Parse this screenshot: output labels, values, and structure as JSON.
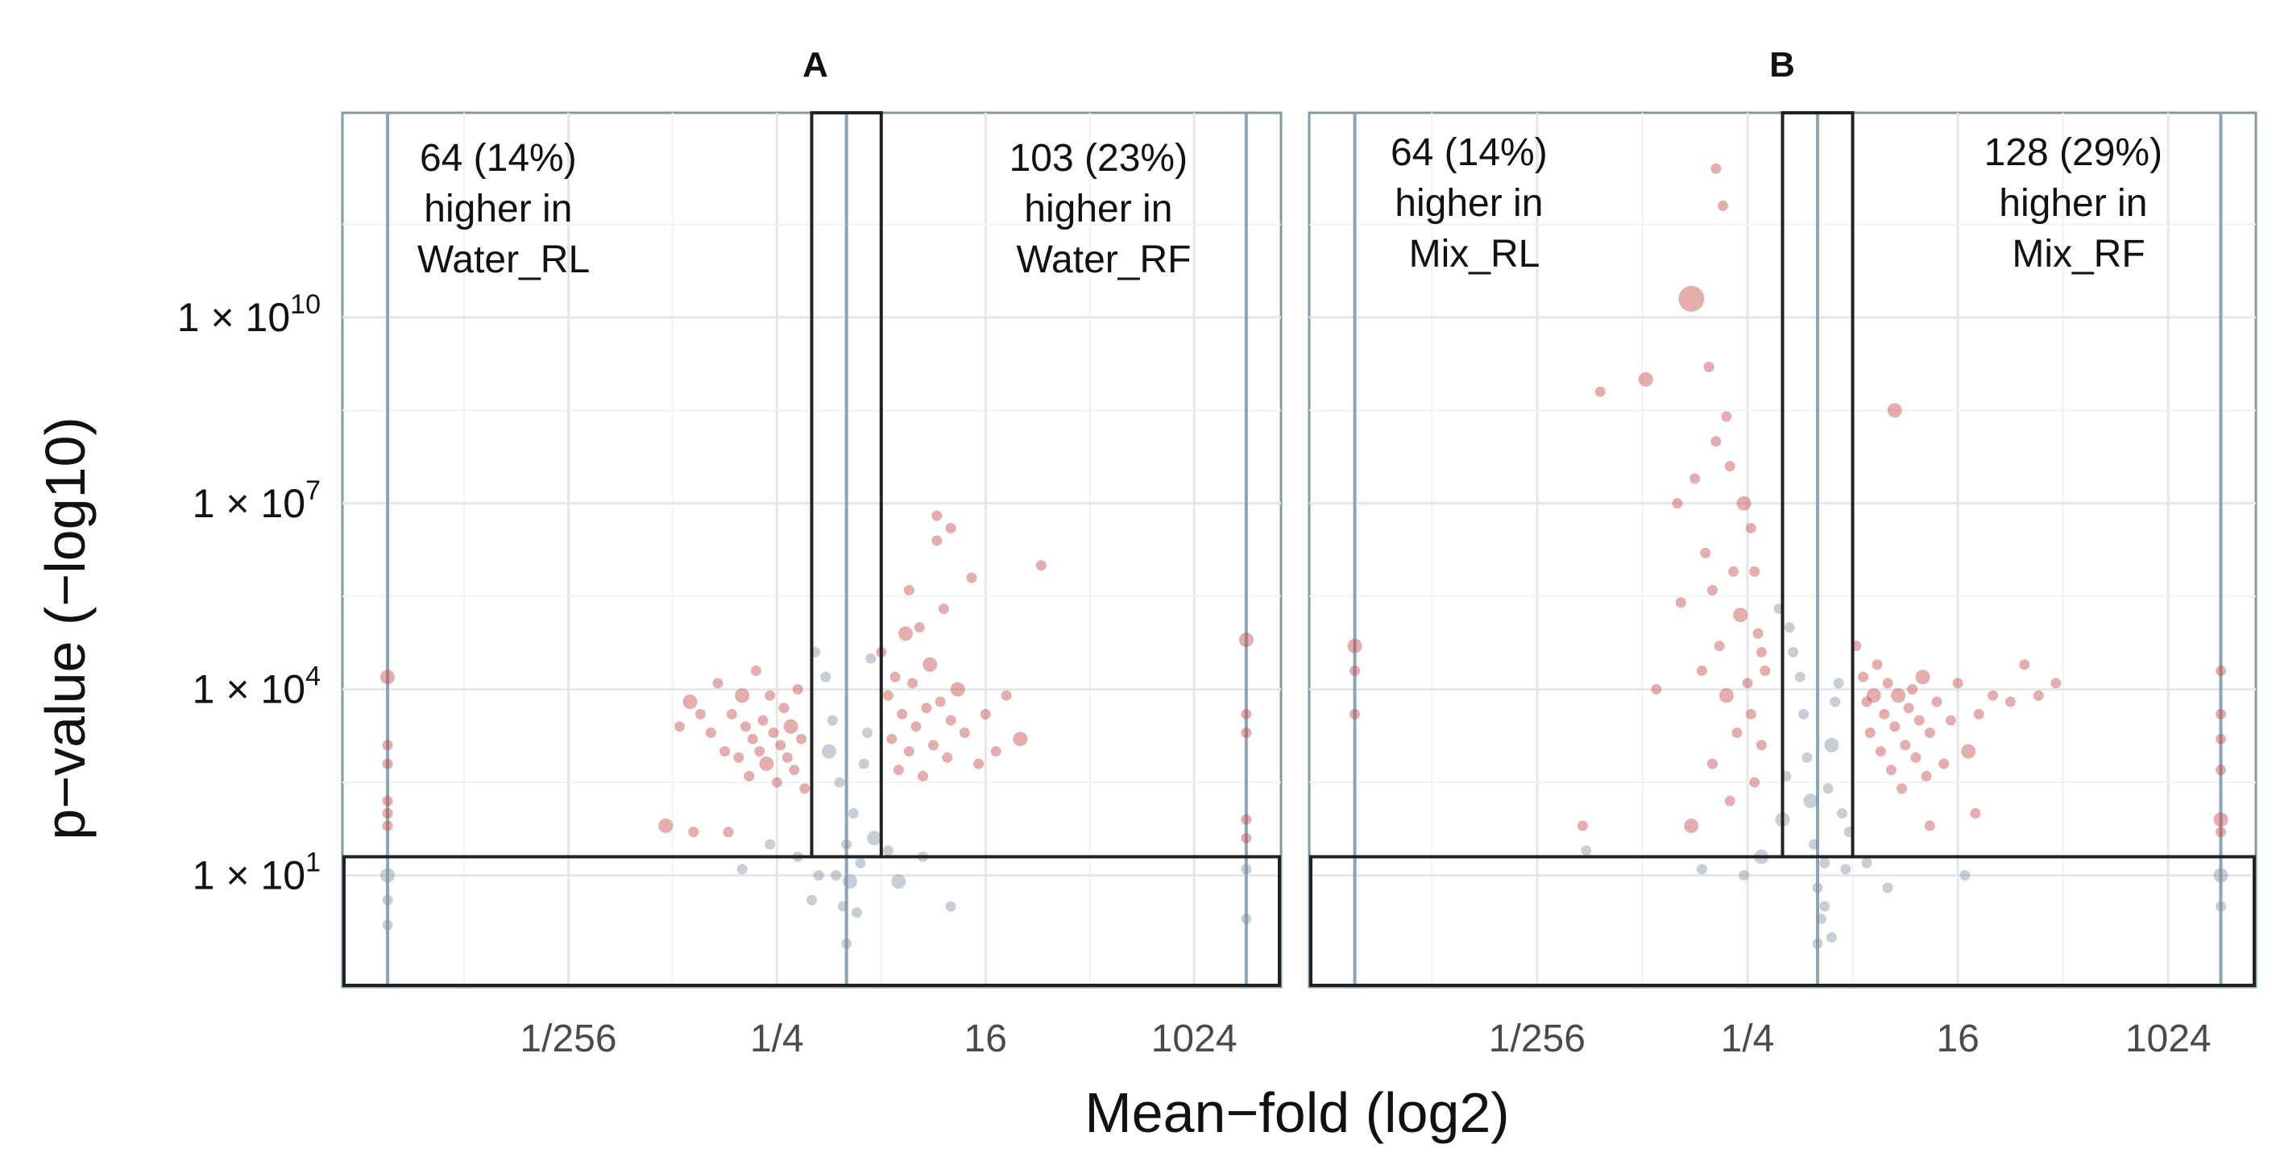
{
  "figure": {
    "xlabel": "Mean−fold (log2)",
    "ylabel": "p−value (−log10)"
  },
  "colors": {
    "significant": "#c84a4a",
    "nonsignificant": "#8193a6",
    "threshold_line": "#8aa4b8",
    "box": "#222222",
    "grid": "#e6e6e6"
  },
  "chart_data": [
    {
      "type": "scatter",
      "title": "A",
      "xlabel": "Mean−fold (log2)",
      "ylabel": "p−value (−log10)",
      "x_scale": "log2",
      "y_scale": "log10",
      "xlim": [
        -14.5,
        12.5
      ],
      "ylim": [
        -0.8,
        13.3
      ],
      "x_ticks": [
        {
          "value": -8,
          "label": "1/256"
        },
        {
          "value": -2,
          "label": "1/4"
        },
        {
          "value": 4,
          "label": "16"
        },
        {
          "value": 10,
          "label": "1024"
        }
      ],
      "y_ticks": [
        {
          "value": 1,
          "base": "1 × 10",
          "exp": "1"
        },
        {
          "value": 4,
          "base": "1 × 10",
          "exp": "4"
        },
        {
          "value": 7,
          "base": "1 × 10",
          "exp": "7"
        },
        {
          "value": 10,
          "base": "1 × 10",
          "exp": "10"
        }
      ],
      "annotations": {
        "left": [
          "64 (14%)",
          "higher in",
          "Water_RL"
        ],
        "right": [
          "103 (23%)",
          "higher in",
          "Water_RF"
        ]
      },
      "thresholds": {
        "x_low": -13.2,
        "x_high": 11.5,
        "fold_low": -1,
        "fold_high": 1,
        "p": 1.3
      },
      "series": [
        {
          "name": "significant",
          "points": [
            [
              -13.2,
              4.2
            ],
            [
              -13.2,
              3.1
            ],
            [
              -13.2,
              2.8
            ],
            [
              -13.2,
              2.2
            ],
            [
              -13.2,
              2.0
            ],
            [
              -13.2,
              1.8
            ],
            [
              -4.8,
              3.4
            ],
            [
              -4.5,
              3.8
            ],
            [
              -4.2,
              3.6
            ],
            [
              -3.9,
              3.3
            ],
            [
              -3.7,
              4.1
            ],
            [
              -3.5,
              3.0
            ],
            [
              -3.3,
              3.6
            ],
            [
              -3.1,
              2.9
            ],
            [
              -3.0,
              3.9
            ],
            [
              -2.9,
              3.4
            ],
            [
              -2.8,
              2.6
            ],
            [
              -2.7,
              3.2
            ],
            [
              -2.6,
              4.3
            ],
            [
              -2.5,
              3.0
            ],
            [
              -2.4,
              3.5
            ],
            [
              -2.3,
              2.8
            ],
            [
              -2.2,
              3.9
            ],
            [
              -2.1,
              3.3
            ],
            [
              -2.0,
              2.5
            ],
            [
              -1.9,
              3.1
            ],
            [
              -1.8,
              3.7
            ],
            [
              -1.7,
              2.9
            ],
            [
              -1.6,
              3.4
            ],
            [
              -1.5,
              2.7
            ],
            [
              -1.4,
              4.0
            ],
            [
              -1.3,
              3.2
            ],
            [
              -1.2,
              2.4
            ],
            [
              -3.4,
              1.7
            ],
            [
              -4.4,
              1.7
            ],
            [
              -5.2,
              1.8
            ],
            [
              1.0,
              4.6
            ],
            [
              1.2,
              3.9
            ],
            [
              1.3,
              3.2
            ],
            [
              1.4,
              4.2
            ],
            [
              1.5,
              2.7
            ],
            [
              1.6,
              3.6
            ],
            [
              1.7,
              4.9
            ],
            [
              1.8,
              3.0
            ],
            [
              1.9,
              4.1
            ],
            [
              2.0,
              3.4
            ],
            [
              2.1,
              5.0
            ],
            [
              2.2,
              2.6
            ],
            [
              2.3,
              3.7
            ],
            [
              2.4,
              4.4
            ],
            [
              2.5,
              3.1
            ],
            [
              2.6,
              6.4
            ],
            [
              2.7,
              3.8
            ],
            [
              2.8,
              5.3
            ],
            [
              2.9,
              2.9
            ],
            [
              3.0,
              3.5
            ],
            [
              3.2,
              4.0
            ],
            [
              3.4,
              3.3
            ],
            [
              3.6,
              5.8
            ],
            [
              3.8,
              2.8
            ],
            [
              4.0,
              3.6
            ],
            [
              4.3,
              3.0
            ],
            [
              4.6,
              3.9
            ],
            [
              5.0,
              3.2
            ],
            [
              5.6,
              6.0
            ],
            [
              3.0,
              6.6
            ],
            [
              2.6,
              6.8
            ],
            [
              1.8,
              5.6
            ]
          ]
        },
        {
          "name": "nonsignificant",
          "points": [
            [
              -13.2,
              1.0
            ],
            [
              -13.2,
              0.6
            ],
            [
              -13.2,
              0.2
            ],
            [
              11.5,
              1.1
            ],
            [
              11.5,
              0.3
            ],
            [
              -0.9,
              4.6
            ],
            [
              -0.6,
              4.2
            ],
            [
              -0.5,
              3.0
            ],
            [
              -0.4,
              3.5
            ],
            [
              -0.3,
              1.0
            ],
            [
              -0.2,
              2.5
            ],
            [
              -0.1,
              0.5
            ],
            [
              0.0,
              -0.1
            ],
            [
              0.0,
              1.5
            ],
            [
              0.1,
              0.9
            ],
            [
              0.2,
              2.0
            ],
            [
              0.3,
              0.4
            ],
            [
              0.4,
              1.2
            ],
            [
              0.5,
              2.8
            ],
            [
              0.6,
              3.3
            ],
            [
              0.7,
              4.5
            ],
            [
              0.8,
              1.6
            ],
            [
              -0.8,
              1.0
            ],
            [
              -1.0,
              0.6
            ],
            [
              -1.4,
              1.3
            ],
            [
              -2.2,
              1.5
            ],
            [
              -3.0,
              1.1
            ],
            [
              1.2,
              1.4
            ],
            [
              1.5,
              0.9
            ],
            [
              2.2,
              1.3
            ],
            [
              3.0,
              0.5
            ]
          ]
        },
        {
          "name": "significant-right-edge",
          "points": [
            [
              11.5,
              4.8
            ],
            [
              11.5,
              3.6
            ],
            [
              11.5,
              3.3
            ],
            [
              11.5,
              1.9
            ],
            [
              11.5,
              1.6
            ]
          ]
        }
      ]
    },
    {
      "type": "scatter",
      "title": "B",
      "xlabel": "Mean−fold (log2)",
      "ylabel": "p−value (−log10)",
      "x_scale": "log2",
      "y_scale": "log10",
      "xlim": [
        -14.5,
        12.5
      ],
      "ylim": [
        -0.8,
        13.3
      ],
      "x_ticks": [
        {
          "value": -8,
          "label": "1/256"
        },
        {
          "value": -2,
          "label": "1/4"
        },
        {
          "value": 4,
          "label": "16"
        },
        {
          "value": 10,
          "label": "1024"
        }
      ],
      "y_ticks": [
        {
          "value": 1,
          "base": "1 × 10",
          "exp": "1"
        },
        {
          "value": 4,
          "base": "1 × 10",
          "exp": "4"
        },
        {
          "value": 7,
          "base": "1 × 10",
          "exp": "7"
        },
        {
          "value": 10,
          "base": "1 × 10",
          "exp": "10"
        }
      ],
      "annotations": {
        "left": [
          "64 (14%)",
          "higher in",
          "Mix_RL"
        ],
        "right": [
          "128 (29%)",
          "higher in",
          "Mix_RF"
        ]
      },
      "thresholds": {
        "x_low": -13.2,
        "x_high": 11.5,
        "fold_low": -1,
        "fold_high": 1,
        "p": 1.3
      },
      "series": [
        {
          "name": "significant",
          "points": [
            [
              -13.2,
              4.7
            ],
            [
              -13.2,
              4.3
            ],
            [
              -13.2,
              3.6
            ],
            [
              -2.9,
              12.4
            ],
            [
              -2.7,
              11.8
            ],
            [
              -3.6,
              10.3
            ],
            [
              -3.1,
              9.2
            ],
            [
              -4.9,
              9.0
            ],
            [
              -6.2,
              8.8
            ],
            [
              -2.6,
              8.4
            ],
            [
              -2.9,
              8.0
            ],
            [
              -3.5,
              7.4
            ],
            [
              -2.5,
              7.6
            ],
            [
              -4.0,
              7.0
            ],
            [
              -2.1,
              7.0
            ],
            [
              -1.9,
              6.6
            ],
            [
              -3.2,
              6.2
            ],
            [
              -2.4,
              5.9
            ],
            [
              -3.0,
              5.6
            ],
            [
              -1.8,
              5.9
            ],
            [
              -3.9,
              5.4
            ],
            [
              -2.2,
              5.2
            ],
            [
              -1.7,
              4.9
            ],
            [
              -2.8,
              4.7
            ],
            [
              -1.6,
              4.6
            ],
            [
              -3.3,
              4.3
            ],
            [
              -2.0,
              4.1
            ],
            [
              -1.5,
              4.3
            ],
            [
              -2.6,
              3.9
            ],
            [
              -1.9,
              3.6
            ],
            [
              -2.3,
              3.3
            ],
            [
              -1.6,
              3.1
            ],
            [
              -3.0,
              2.8
            ],
            [
              -1.8,
              2.5
            ],
            [
              -2.5,
              2.2
            ],
            [
              -3.6,
              1.8
            ],
            [
              -6.7,
              1.8
            ],
            [
              -4.6,
              4.0
            ],
            [
              1.1,
              4.7
            ],
            [
              1.3,
              4.2
            ],
            [
              1.4,
              3.8
            ],
            [
              1.5,
              3.3
            ],
            [
              1.6,
              3.9
            ],
            [
              1.7,
              4.4
            ],
            [
              1.8,
              3.0
            ],
            [
              1.9,
              3.6
            ],
            [
              2.0,
              4.1
            ],
            [
              2.1,
              2.7
            ],
            [
              2.2,
              3.4
            ],
            [
              2.3,
              3.9
            ],
            [
              2.4,
              2.4
            ],
            [
              2.5,
              3.1
            ],
            [
              2.6,
              3.7
            ],
            [
              2.7,
              4.0
            ],
            [
              2.8,
              2.9
            ],
            [
              2.9,
              3.5
            ],
            [
              3.0,
              4.2
            ],
            [
              3.1,
              2.6
            ],
            [
              3.2,
              3.3
            ],
            [
              3.4,
              3.8
            ],
            [
              3.6,
              2.8
            ],
            [
              3.8,
              3.5
            ],
            [
              4.0,
              4.1
            ],
            [
              4.3,
              3.0
            ],
            [
              4.6,
              3.6
            ],
            [
              5.0,
              3.9
            ],
            [
              5.5,
              3.8
            ],
            [
              6.3,
              3.9
            ],
            [
              6.8,
              4.1
            ],
            [
              5.9,
              4.4
            ],
            [
              2.2,
              8.5
            ],
            [
              4.5,
              2.0
            ],
            [
              3.2,
              1.8
            ],
            [
              11.5,
              4.3
            ],
            [
              11.5,
              3.6
            ],
            [
              11.5,
              3.2
            ],
            [
              11.5,
              2.7
            ],
            [
              11.5,
              1.9
            ],
            [
              11.5,
              1.7
            ]
          ]
        },
        {
          "name": "nonsignificant",
          "points": [
            [
              11.5,
              1.0
            ],
            [
              11.5,
              0.5
            ],
            [
              -0.8,
              5.0
            ],
            [
              -0.7,
              4.6
            ],
            [
              -0.5,
              4.2
            ],
            [
              -0.4,
              3.6
            ],
            [
              -0.3,
              2.9
            ],
            [
              -0.2,
              2.2
            ],
            [
              -0.1,
              1.5
            ],
            [
              0.0,
              -0.1
            ],
            [
              0.0,
              0.8
            ],
            [
              0.1,
              0.3
            ],
            [
              0.2,
              1.2
            ],
            [
              0.3,
              2.4
            ],
            [
              0.4,
              3.1
            ],
            [
              0.5,
              3.8
            ],
            [
              0.6,
              4.1
            ],
            [
              0.7,
              2.0
            ],
            [
              0.8,
              1.1
            ],
            [
              0.9,
              1.7
            ],
            [
              -1.1,
              5.3
            ],
            [
              -1.6,
              1.3
            ],
            [
              -2.1,
              1.0
            ],
            [
              -3.3,
              1.1
            ],
            [
              -6.6,
              1.4
            ],
            [
              1.4,
              1.2
            ],
            [
              2.0,
              0.8
            ],
            [
              4.2,
              1.0
            ],
            [
              -1.0,
              1.9
            ],
            [
              -0.9,
              2.6
            ],
            [
              0.4,
              0.0
            ],
            [
              0.2,
              0.5
            ]
          ]
        }
      ]
    }
  ]
}
